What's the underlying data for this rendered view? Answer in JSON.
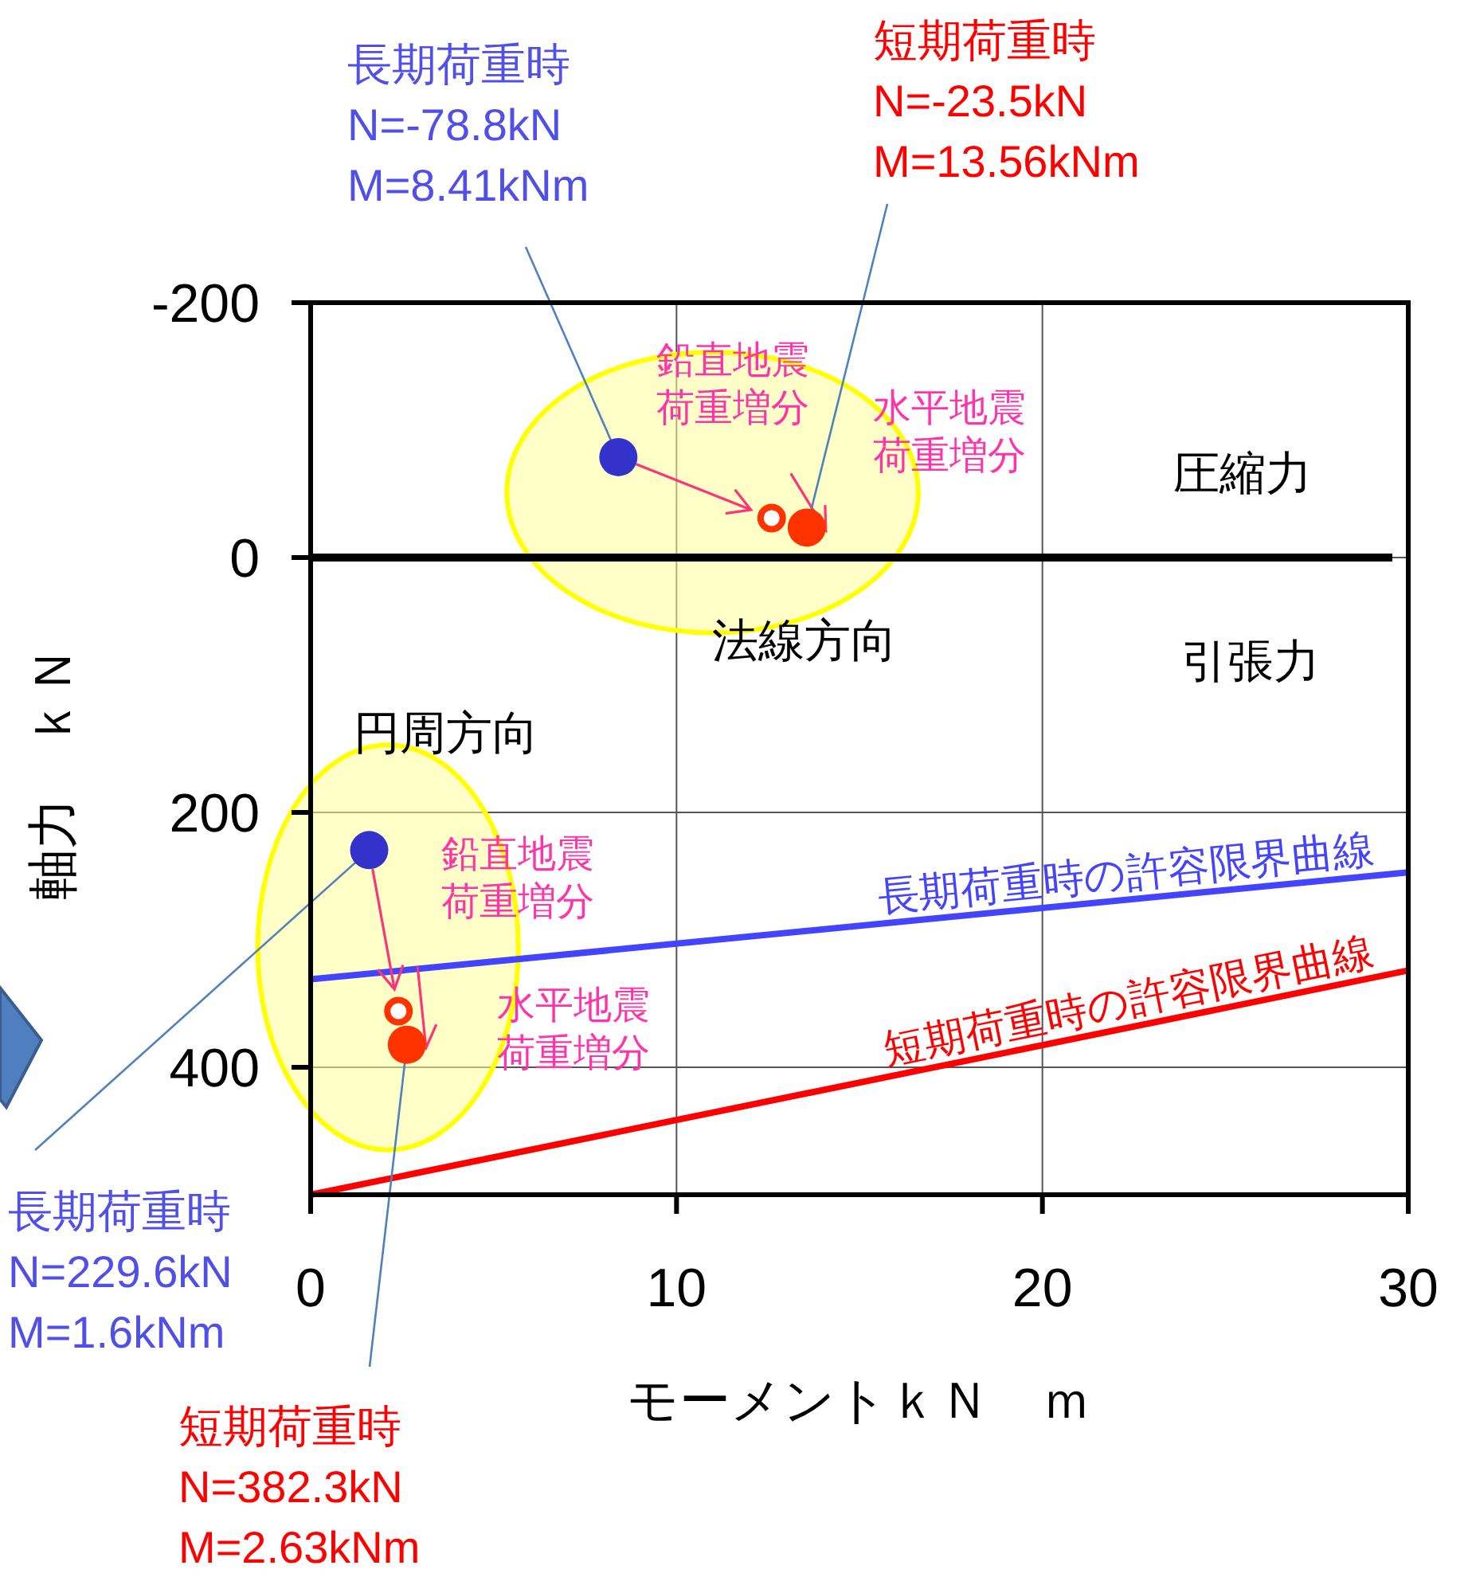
{
  "chart_data": {
    "type": "scatter",
    "xlabel": "モーメントｋＮ　ｍ",
    "ylabel": "軸力　ｋＮ",
    "xlim": [
      0,
      30
    ],
    "ylim": [
      500,
      -200
    ],
    "xticks": [
      0,
      10,
      20,
      30
    ],
    "yticks": [
      -200,
      0,
      200,
      400
    ],
    "grid": true,
    "series": [
      {
        "type": "scatter",
        "marker": "circle",
        "color": "#3333cc",
        "x": [
          8.41,
          1.6
        ],
        "values": [
          -78.8,
          229.6
        ]
      },
      {
        "type": "scatter",
        "marker": "circle",
        "color": "#ff3300",
        "x": [
          13.56,
          2.63
        ],
        "values": [
          -23.5,
          382.3
        ]
      },
      {
        "type": "scatter",
        "marker": "circle",
        "color": "#ff3300",
        "x": [
          12.6,
          2.4
        ],
        "values": [
          -31,
          356
        ]
      },
      {
        "type": "line",
        "name": "長期荷重時の許容限界曲線",
        "color": "#4444ff",
        "x": [
          0,
          30
        ],
        "values": [
          331,
          247
        ]
      },
      {
        "type": "line",
        "name": "短期荷重時の許容限界曲線",
        "color": "#ff0000",
        "x": [
          0,
          30
        ],
        "values": [
          500,
          324
        ]
      }
    ],
    "ref_lines": [
      {
        "axis": "y",
        "value": 0,
        "color": "#000000"
      }
    ],
    "annotations": [
      {
        "text": "長期荷重時\nN=-78.8kN\nM=8.41kNm",
        "x": 8.41,
        "y": -78.8
      },
      {
        "text": "短期荷重時\nN=-23.5kN\nM=13.56kNm",
        "x": 13.56,
        "y": -23.5
      },
      {
        "text": "長期荷重時\nN=229.6kN\nM=1.6kNm",
        "x": 1.6,
        "y": 229.6
      },
      {
        "text": "短期荷重時\nN=382.3kN\nM=2.63kNm",
        "x": 2.63,
        "y": 382.3
      },
      {
        "text": "鉛直地震荷重増分",
        "x": 12.6,
        "y": -31
      },
      {
        "text": "水平地震荷重増分",
        "x": 13.56,
        "y": -23.5
      },
      {
        "text": "鉛直地震荷重増分",
        "x": 2.4,
        "y": 356
      },
      {
        "text": "水平地震荷重増分",
        "x": 2.63,
        "y": 382.3
      },
      "圧縮力",
      "引張力",
      "法線方向",
      "円周方向"
    ]
  }
}
